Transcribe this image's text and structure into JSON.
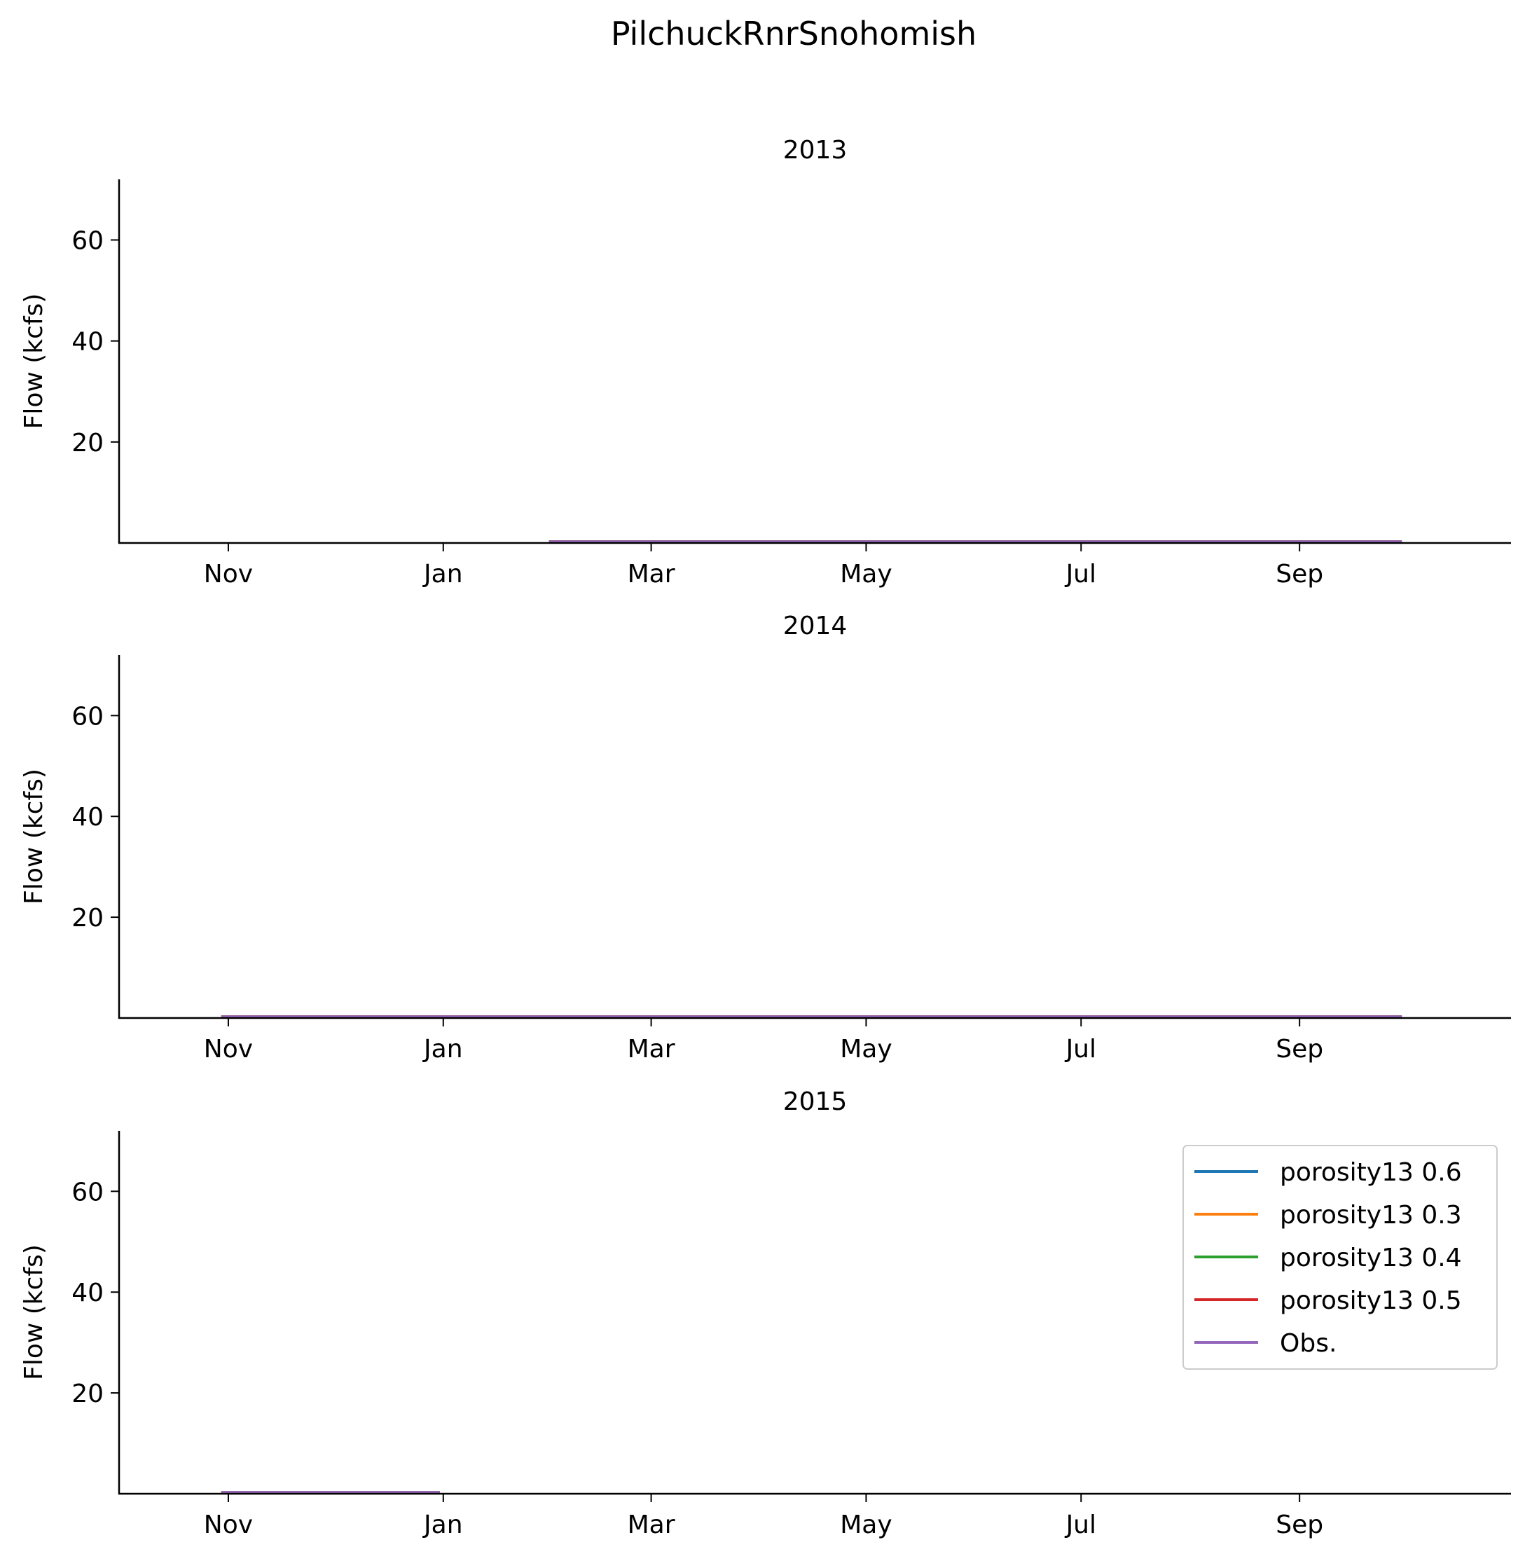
{
  "figure": {
    "suptitle": "PilchuckRnrSnohomish"
  },
  "chart_data": [
    {
      "type": "line",
      "title": "2013",
      "xlabel": "",
      "ylabel": "Flow (kcfs)",
      "xlim": [
        "2012-10-01",
        "2013-10-31"
      ],
      "ylim": [
        0,
        72
      ],
      "yticks": [
        20,
        40,
        60
      ],
      "xticks": [
        {
          "date": "2012-11-01",
          "label": "Nov"
        },
        {
          "date": "2013-01-01",
          "label": "Jan"
        },
        {
          "date": "2013-03-01",
          "label": "Mar"
        },
        {
          "date": "2013-05-01",
          "label": "May"
        },
        {
          "date": "2013-07-01",
          "label": "Jul"
        },
        {
          "date": "2013-09-01",
          "label": "Sep"
        }
      ],
      "grid": false,
      "series": [
        {
          "name": "porosity13 0.6",
          "color": "#1f77b4",
          "x": [
            "2013-01-31",
            "2013-09-30"
          ],
          "y": [
            0.3,
            0.3
          ]
        },
        {
          "name": "porosity13 0.3",
          "color": "#ff7f0e",
          "x": [
            "2013-01-31",
            "2013-09-30"
          ],
          "y": [
            0.3,
            0.3
          ]
        },
        {
          "name": "porosity13 0.4",
          "color": "#2ca02c",
          "x": [
            "2013-01-31",
            "2013-09-30"
          ],
          "y": [
            0.3,
            0.3
          ]
        },
        {
          "name": "porosity13 0.5",
          "color": "#d62728",
          "x": [
            "2013-01-31",
            "2013-09-30"
          ],
          "y": [
            0.3,
            0.3
          ]
        },
        {
          "name": "Obs.",
          "color": "#9467bd",
          "x": [
            "2013-01-31",
            "2013-09-30"
          ],
          "y": [
            0.3,
            0.3
          ]
        }
      ]
    },
    {
      "type": "line",
      "title": "2014",
      "xlabel": "",
      "ylabel": "Flow (kcfs)",
      "xlim": [
        "2013-10-01",
        "2014-10-31"
      ],
      "ylim": [
        0,
        72
      ],
      "yticks": [
        20,
        40,
        60
      ],
      "xticks": [
        {
          "date": "2013-11-01",
          "label": "Nov"
        },
        {
          "date": "2014-01-01",
          "label": "Jan"
        },
        {
          "date": "2014-03-01",
          "label": "Mar"
        },
        {
          "date": "2014-05-01",
          "label": "May"
        },
        {
          "date": "2014-07-01",
          "label": "Jul"
        },
        {
          "date": "2014-09-01",
          "label": "Sep"
        }
      ],
      "grid": false,
      "series": [
        {
          "name": "porosity13 0.6",
          "color": "#1f77b4",
          "x": [
            "2013-10-30",
            "2014-09-30"
          ],
          "y": [
            0.3,
            0.3
          ]
        },
        {
          "name": "porosity13 0.3",
          "color": "#ff7f0e",
          "x": [
            "2013-10-30",
            "2014-09-30"
          ],
          "y": [
            0.3,
            0.3
          ]
        },
        {
          "name": "porosity13 0.4",
          "color": "#2ca02c",
          "x": [
            "2013-10-30",
            "2014-09-30"
          ],
          "y": [
            0.3,
            0.3
          ]
        },
        {
          "name": "porosity13 0.5",
          "color": "#d62728",
          "x": [
            "2013-10-30",
            "2014-09-30"
          ],
          "y": [
            0.3,
            0.3
          ]
        },
        {
          "name": "Obs.",
          "color": "#9467bd",
          "x": [
            "2013-10-30",
            "2014-09-30"
          ],
          "y": [
            0.3,
            0.3
          ]
        }
      ]
    },
    {
      "type": "line",
      "title": "2015",
      "xlabel": "",
      "ylabel": "Flow (kcfs)",
      "xlim": [
        "2014-10-01",
        "2015-10-31"
      ],
      "ylim": [
        0,
        72
      ],
      "yticks": [
        20,
        40,
        60
      ],
      "xticks": [
        {
          "date": "2014-11-01",
          "label": "Nov"
        },
        {
          "date": "2015-01-01",
          "label": "Jan"
        },
        {
          "date": "2015-03-01",
          "label": "Mar"
        },
        {
          "date": "2015-05-01",
          "label": "May"
        },
        {
          "date": "2015-07-01",
          "label": "Jul"
        },
        {
          "date": "2015-09-01",
          "label": "Sep"
        }
      ],
      "grid": false,
      "legend": {
        "location": "upper right",
        "entries": [
          {
            "label": "porosity13 0.6",
            "color": "#1f77b4"
          },
          {
            "label": "porosity13 0.3",
            "color": "#ff7f0e"
          },
          {
            "label": "porosity13 0.4",
            "color": "#2ca02c"
          },
          {
            "label": "porosity13 0.5",
            "color": "#d62728"
          },
          {
            "label": "Obs.",
            "color": "#9467bd"
          }
        ]
      },
      "series": [
        {
          "name": "porosity13 0.6",
          "color": "#1f77b4",
          "x": [
            "2014-10-30",
            "2014-12-31"
          ],
          "y": [
            0.3,
            0.3
          ]
        },
        {
          "name": "porosity13 0.3",
          "color": "#ff7f0e",
          "x": [
            "2014-10-30",
            "2014-12-31"
          ],
          "y": [
            0.3,
            0.3
          ]
        },
        {
          "name": "porosity13 0.4",
          "color": "#2ca02c",
          "x": [
            "2014-10-30",
            "2014-12-31"
          ],
          "y": [
            0.3,
            0.3
          ]
        },
        {
          "name": "porosity13 0.5",
          "color": "#d62728",
          "x": [
            "2014-10-30",
            "2014-12-31"
          ],
          "y": [
            0.3,
            0.3
          ]
        },
        {
          "name": "Obs.",
          "color": "#9467bd",
          "x": [
            "2014-10-30",
            "2014-12-31"
          ],
          "y": [
            0.3,
            0.3
          ]
        }
      ]
    }
  ]
}
